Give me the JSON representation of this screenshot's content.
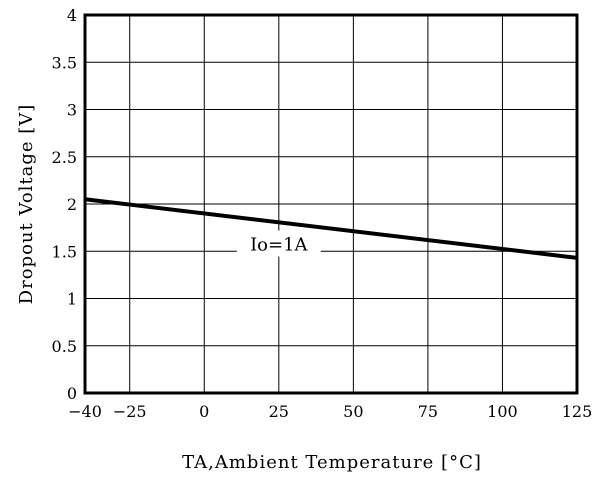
{
  "chart_data": {
    "type": "line",
    "xlabel": "TA,Ambient Temperature [°C]",
    "ylabel": "Dropout Voltage [V]",
    "xlim": [
      -40,
      125
    ],
    "ylim": [
      0,
      4
    ],
    "x_ticks": [
      "-40",
      "-25",
      "0",
      "25",
      "50",
      "75",
      "100",
      "125"
    ],
    "y_ticks": [
      "0",
      "0.5",
      "1",
      "1.5",
      "2",
      "2.5",
      "3",
      "3.5",
      "4"
    ],
    "grid": true,
    "series": [
      {
        "name": "Io=1A",
        "x": [
          -40,
          125
        ],
        "y": [
          2.05,
          1.43
        ]
      }
    ],
    "annotations": [
      {
        "text": "Io=1A",
        "x": 25,
        "y": 1.55
      }
    ]
  }
}
